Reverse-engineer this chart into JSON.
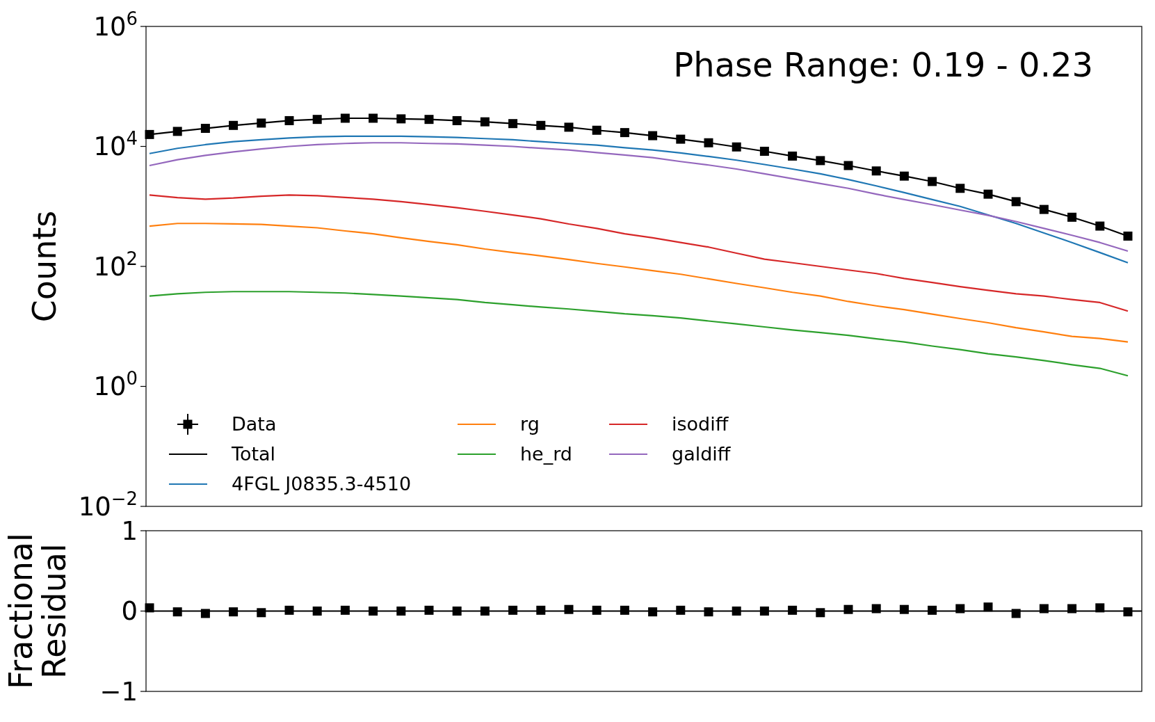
{
  "chart_data": [
    {
      "type": "line",
      "ylabel": "Counts",
      "annotations": [
        "Phase Range: 0.19 - 0.23"
      ],
      "log": true,
      "legend": "bottom left",
      "tick_labels": "y",
      "categories": [
        null,
        null,
        null,
        null,
        null,
        null,
        null,
        null,
        null,
        null,
        null,
        null,
        null,
        null,
        null,
        null,
        null,
        null,
        null,
        null,
        null,
        null,
        null,
        null,
        null,
        null,
        null,
        null,
        null,
        null,
        null,
        null,
        null,
        null,
        null,
        null
      ],
      "ylim": [
        0.01,
        1000000
      ],
      "yticks": [
        {
          "value": 0.01,
          "label": "10$^{−2}$"
        },
        {
          "value": 1,
          "label": "10$^{0}$"
        },
        {
          "value": 100,
          "label": "10$^{2}$"
        },
        {
          "value": 10000,
          "label": "10$^{4}$"
        },
        {
          "value": 1000000,
          "label": "10$^{6}$"
        }
      ],
      "series": [
        {
          "name": "Data",
          "type": "scatter",
          "marker": "square",
          "color": "#000000",
          "values": [
            15800,
            17800,
            20000,
            22400,
            24500,
            26900,
            28200,
            29500,
            29500,
            28800,
            28200,
            26900,
            25700,
            24000,
            22400,
            20900,
            18600,
            17000,
            15100,
            13200,
            11500,
            9800,
            8300,
            6900,
            5800,
            4800,
            3900,
            3200,
            2600,
            2000,
            1600,
            1200,
            890,
            660,
            470,
            320
          ]
        },
        {
          "name": "Total",
          "color": "#000000",
          "values": [
            15800,
            17800,
            20000,
            22400,
            24500,
            26900,
            28200,
            29500,
            29500,
            28800,
            28200,
            26900,
            25700,
            24000,
            22400,
            20900,
            18600,
            17000,
            15100,
            13200,
            11500,
            9800,
            8300,
            6900,
            5800,
            4800,
            3900,
            3200,
            2600,
            2000,
            1600,
            1200,
            890,
            660,
            470,
            320
          ]
        },
        {
          "name": "4FGL J0835.3-4510",
          "color": "#1f77b4",
          "values": [
            7600,
            9300,
            10700,
            12000,
            12900,
            13800,
            14500,
            14800,
            14800,
            14800,
            14500,
            14100,
            13500,
            12900,
            12000,
            11200,
            10500,
            9500,
            8700,
            7800,
            6800,
            5900,
            5000,
            4200,
            3500,
            2800,
            2200,
            1700,
            1300,
            1000,
            720,
            520,
            360,
            250,
            170,
            115
          ]
        },
        {
          "name": "rg",
          "color": "#ff7f0e",
          "values": [
            470,
            520,
            520,
            510,
            500,
            470,
            440,
            390,
            350,
            300,
            260,
            230,
            195,
            170,
            150,
            130,
            112,
            98,
            85,
            74,
            62,
            52,
            44,
            37,
            32,
            26,
            22,
            19,
            16,
            13.5,
            11.5,
            9.5,
            8.1,
            6.8,
            6.3,
            5.5
          ]
        },
        {
          "name": "he_rd",
          "color": "#2ca02c",
          "values": [
            32,
            35,
            37,
            38,
            38,
            38,
            37,
            36,
            34,
            32,
            30,
            28,
            25,
            23,
            21,
            19.5,
            17.8,
            16.2,
            15.1,
            13.8,
            12.3,
            11,
            9.8,
            8.7,
            7.9,
            7.1,
            6.2,
            5.5,
            4.7,
            4.1,
            3.5,
            3.1,
            2.7,
            2.3,
            2,
            1.5
          ]
        },
        {
          "name": "isodiff",
          "color": "#d62728",
          "values": [
            1550,
            1400,
            1320,
            1380,
            1480,
            1550,
            1510,
            1410,
            1320,
            1200,
            1070,
            950,
            830,
            720,
            620,
            510,
            430,
            350,
            300,
            250,
            210,
            166,
            132,
            115,
            100,
            87,
            76,
            63,
            54,
            46,
            40,
            35,
            32,
            28,
            25,
            18
          ]
        },
        {
          "name": "galdiff",
          "color": "#9467bd",
          "values": [
            4800,
            6000,
            7100,
            8100,
            9100,
            10000,
            10700,
            11200,
            11500,
            11500,
            11200,
            11000,
            10500,
            10000,
            9300,
            8700,
            7900,
            7200,
            6500,
            5600,
            4900,
            4200,
            3500,
            2900,
            2400,
            2000,
            1600,
            1300,
            1070,
            870,
            710,
            560,
            430,
            330,
            250,
            180
          ]
        }
      ]
    },
    {
      "type": "scatter",
      "ylabel": "Fractional\nResidual",
      "tick_labels": "y",
      "categories": [
        null,
        null,
        null,
        null,
        null,
        null,
        null,
        null,
        null,
        null,
        null,
        null,
        null,
        null,
        null,
        null,
        null,
        null,
        null,
        null,
        null,
        null,
        null,
        null,
        null,
        null,
        null,
        null,
        null,
        null,
        null,
        null,
        null,
        null,
        null,
        null
      ],
      "ylim": [
        -1,
        1
      ],
      "yticks": [
        {
          "value": -1,
          "label": "−1"
        },
        0,
        1
      ],
      "ref_lines": [
        {
          "axis": "y",
          "value": 0,
          "color": "#000000"
        }
      ],
      "series": [
        {
          "marker": "square",
          "color": "#000000",
          "values": [
            0.04,
            -0.01,
            -0.03,
            -0.01,
            -0.02,
            0.01,
            0,
            0.01,
            0,
            0,
            0.01,
            0,
            0,
            0.01,
            0.01,
            0.02,
            0.01,
            0.01,
            -0.01,
            0.01,
            -0.01,
            0,
            0,
            0.01,
            -0.02,
            0.02,
            0.03,
            0.02,
            0.01,
            0.03,
            0.05,
            -0.03,
            0.03,
            0.03,
            0.04,
            -0.01
          ]
        }
      ]
    }
  ]
}
